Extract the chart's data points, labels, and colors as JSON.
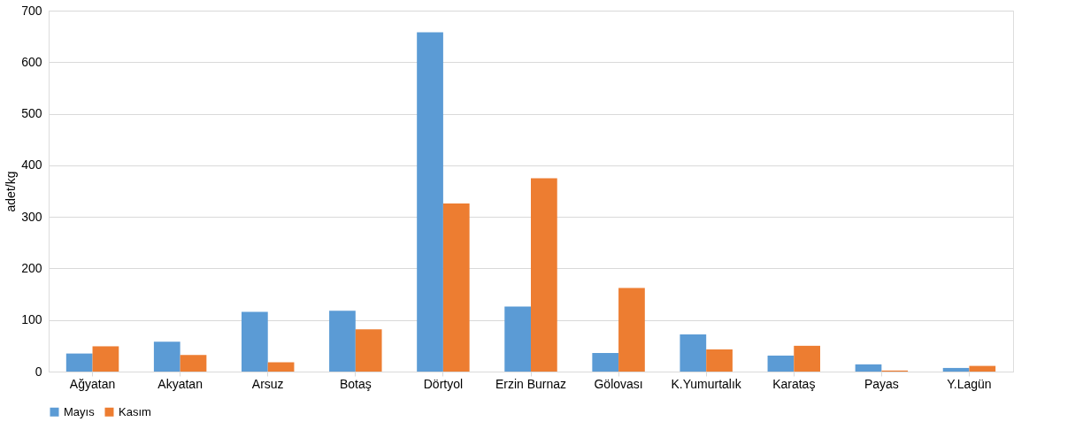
{
  "chart_data": {
    "type": "bar",
    "ylabel": "adet/kg",
    "categories": [
      "Ağyatan",
      "Akyatan",
      "Arsuz",
      "Botaş",
      "Dörtyol",
      "Erzin Burnaz",
      "Gölovası",
      "K.Yumurtalık",
      "Karataş",
      "Payas",
      "Y.Lagün"
    ],
    "series": [
      {
        "name": "Mayıs",
        "color": "#5b9bd5",
        "values": [
          35,
          58,
          116,
          118,
          658,
          126,
          36,
          72,
          31,
          14,
          7
        ]
      },
      {
        "name": "Kasım",
        "color": "#ed7d31",
        "values": [
          49,
          32,
          18,
          82,
          326,
          375,
          162,
          43,
          50,
          2,
          11
        ]
      }
    ],
    "ylim": [
      0,
      700
    ],
    "yticks": [
      0,
      100,
      200,
      300,
      400,
      500,
      600,
      700
    ],
    "grid": "y",
    "legend": "bottom"
  }
}
